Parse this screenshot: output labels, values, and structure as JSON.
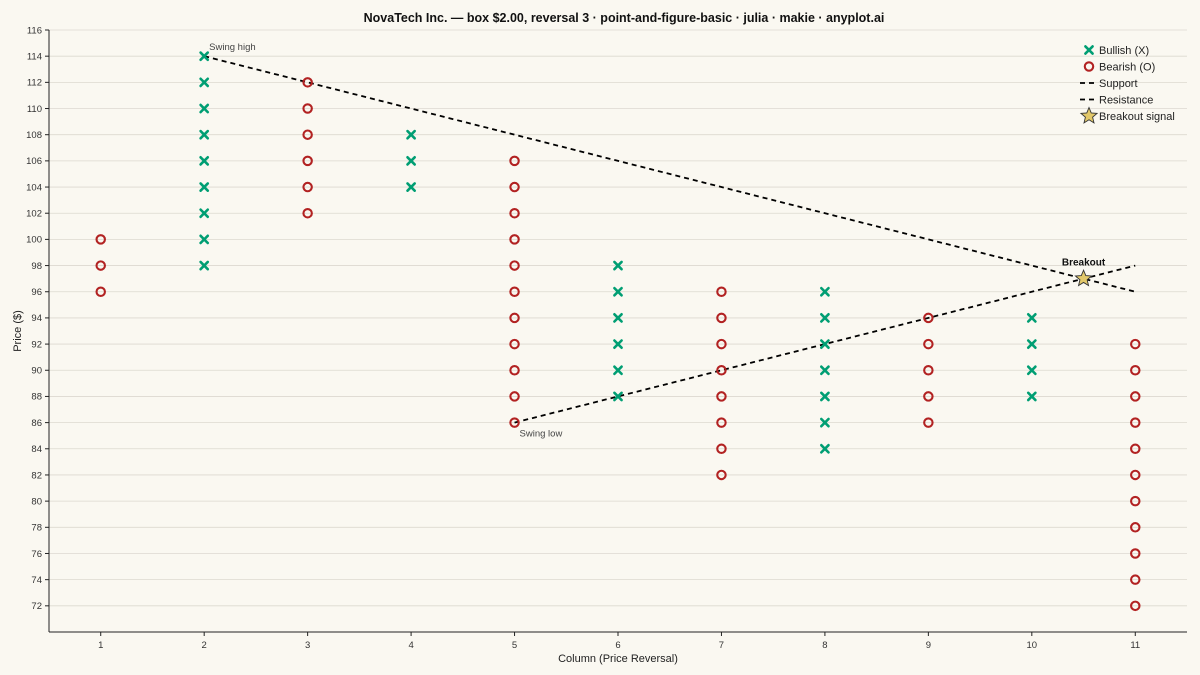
{
  "chart_data": {
    "type": "scatter",
    "subtype": "point-and-figure",
    "title": "NovaTech Inc. — box $2.00, reversal 3 · point-and-figure-basic · julia · makie · anyplot.ai",
    "xlabel": "Column (Price Reversal)",
    "ylabel": "Price ($)",
    "xlim": [
      0.5,
      11.5
    ],
    "ylim": [
      70,
      116
    ],
    "xticks": [
      1,
      2,
      3,
      4,
      5,
      6,
      7,
      8,
      9,
      10,
      11
    ],
    "yticks": [
      72,
      74,
      76,
      78,
      80,
      82,
      84,
      86,
      88,
      90,
      92,
      94,
      96,
      98,
      100,
      102,
      104,
      106,
      108,
      110,
      112,
      114,
      116
    ],
    "grid": true,
    "legend_position": "top-right",
    "colors": {
      "bullish": "#009E73",
      "bearish": "#B22222",
      "trend": "#000000",
      "star": "#E2C86A",
      "background": "#FAF8F1"
    },
    "columns": [
      {
        "col": 1,
        "type": "O",
        "low": 96,
        "high": 100
      },
      {
        "col": 2,
        "type": "X",
        "low": 98,
        "high": 114
      },
      {
        "col": 3,
        "type": "O",
        "low": 102,
        "high": 112
      },
      {
        "col": 4,
        "type": "X",
        "low": 104,
        "high": 108
      },
      {
        "col": 5,
        "type": "O",
        "low": 86,
        "high": 106
      },
      {
        "col": 6,
        "type": "X",
        "low": 88,
        "high": 98
      },
      {
        "col": 7,
        "type": "O",
        "low": 82,
        "high": 96
      },
      {
        "col": 8,
        "type": "X",
        "low": 84,
        "high": 96
      },
      {
        "col": 9,
        "type": "O",
        "low": 86,
        "high": 94
      },
      {
        "col": 10,
        "type": "X",
        "low": 88,
        "high": 94
      },
      {
        "col": 11,
        "type": "O",
        "low": 72,
        "high": 92
      }
    ],
    "support_line": {
      "x": [
        5,
        11
      ],
      "y": [
        86,
        98
      ]
    },
    "resistance_line": {
      "x": [
        2,
        11
      ],
      "y": [
        114,
        96
      ]
    },
    "breakout": {
      "x": 10.5,
      "y": 97,
      "label": "Breakout"
    },
    "annotations": [
      {
        "text": "Swing high",
        "x": 2,
        "y": 114
      },
      {
        "text": "Swing low",
        "x": 5,
        "y": 86
      }
    ],
    "legend": [
      {
        "label": "Bullish (X)",
        "symbol": "x"
      },
      {
        "label": "Bearish (O)",
        "symbol": "o"
      },
      {
        "label": "Support",
        "symbol": "dash"
      },
      {
        "label": "Resistance",
        "symbol": "dash"
      },
      {
        "label": "Breakout signal",
        "symbol": "star"
      }
    ]
  }
}
